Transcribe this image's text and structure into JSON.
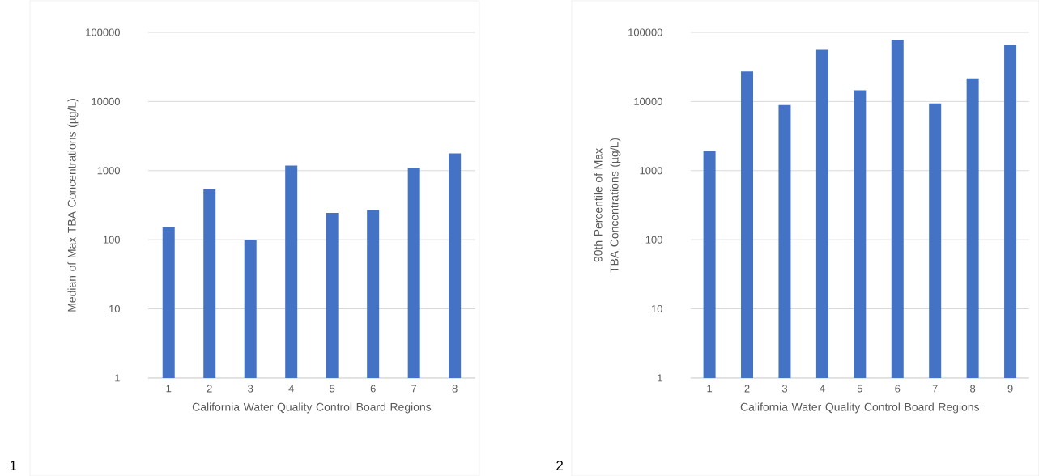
{
  "chart_data": [
    {
      "type": "bar",
      "categories": [
        "1",
        "2",
        "3",
        "4",
        "5",
        "6",
        "7",
        "8"
      ],
      "values": [
        152,
        535,
        100,
        1180,
        245,
        269,
        1090,
        1770
      ],
      "color": "#4472c4",
      "log": true,
      "grid": "y",
      "ylim": [
        1,
        100000
      ],
      "yticks": [
        1,
        10,
        100,
        1000,
        10000,
        100000
      ],
      "xlabel": "California Water Quality Control Board Regions",
      "ylabel": "Median of Max TBA Concentrations (µg/L)",
      "annotations": [
        "1"
      ]
    },
    {
      "type": "bar",
      "categories": [
        "1",
        "2",
        "3",
        "4",
        "5",
        "6",
        "7",
        "8",
        "9"
      ],
      "values": [
        1920,
        27300,
        8900,
        56000,
        14500,
        78000,
        9400,
        21700,
        66000
      ],
      "color": "#4472c4",
      "log": true,
      "grid": "y",
      "ylim": [
        1,
        100000
      ],
      "yticks": [
        1,
        10,
        100,
        1000,
        10000,
        100000
      ],
      "xlabel": "California Water Quality Control Board Regions",
      "ylabel": "90th Percentile of Max TBA Concentrations (µg/L)",
      "annotations": [
        "2"
      ]
    }
  ]
}
